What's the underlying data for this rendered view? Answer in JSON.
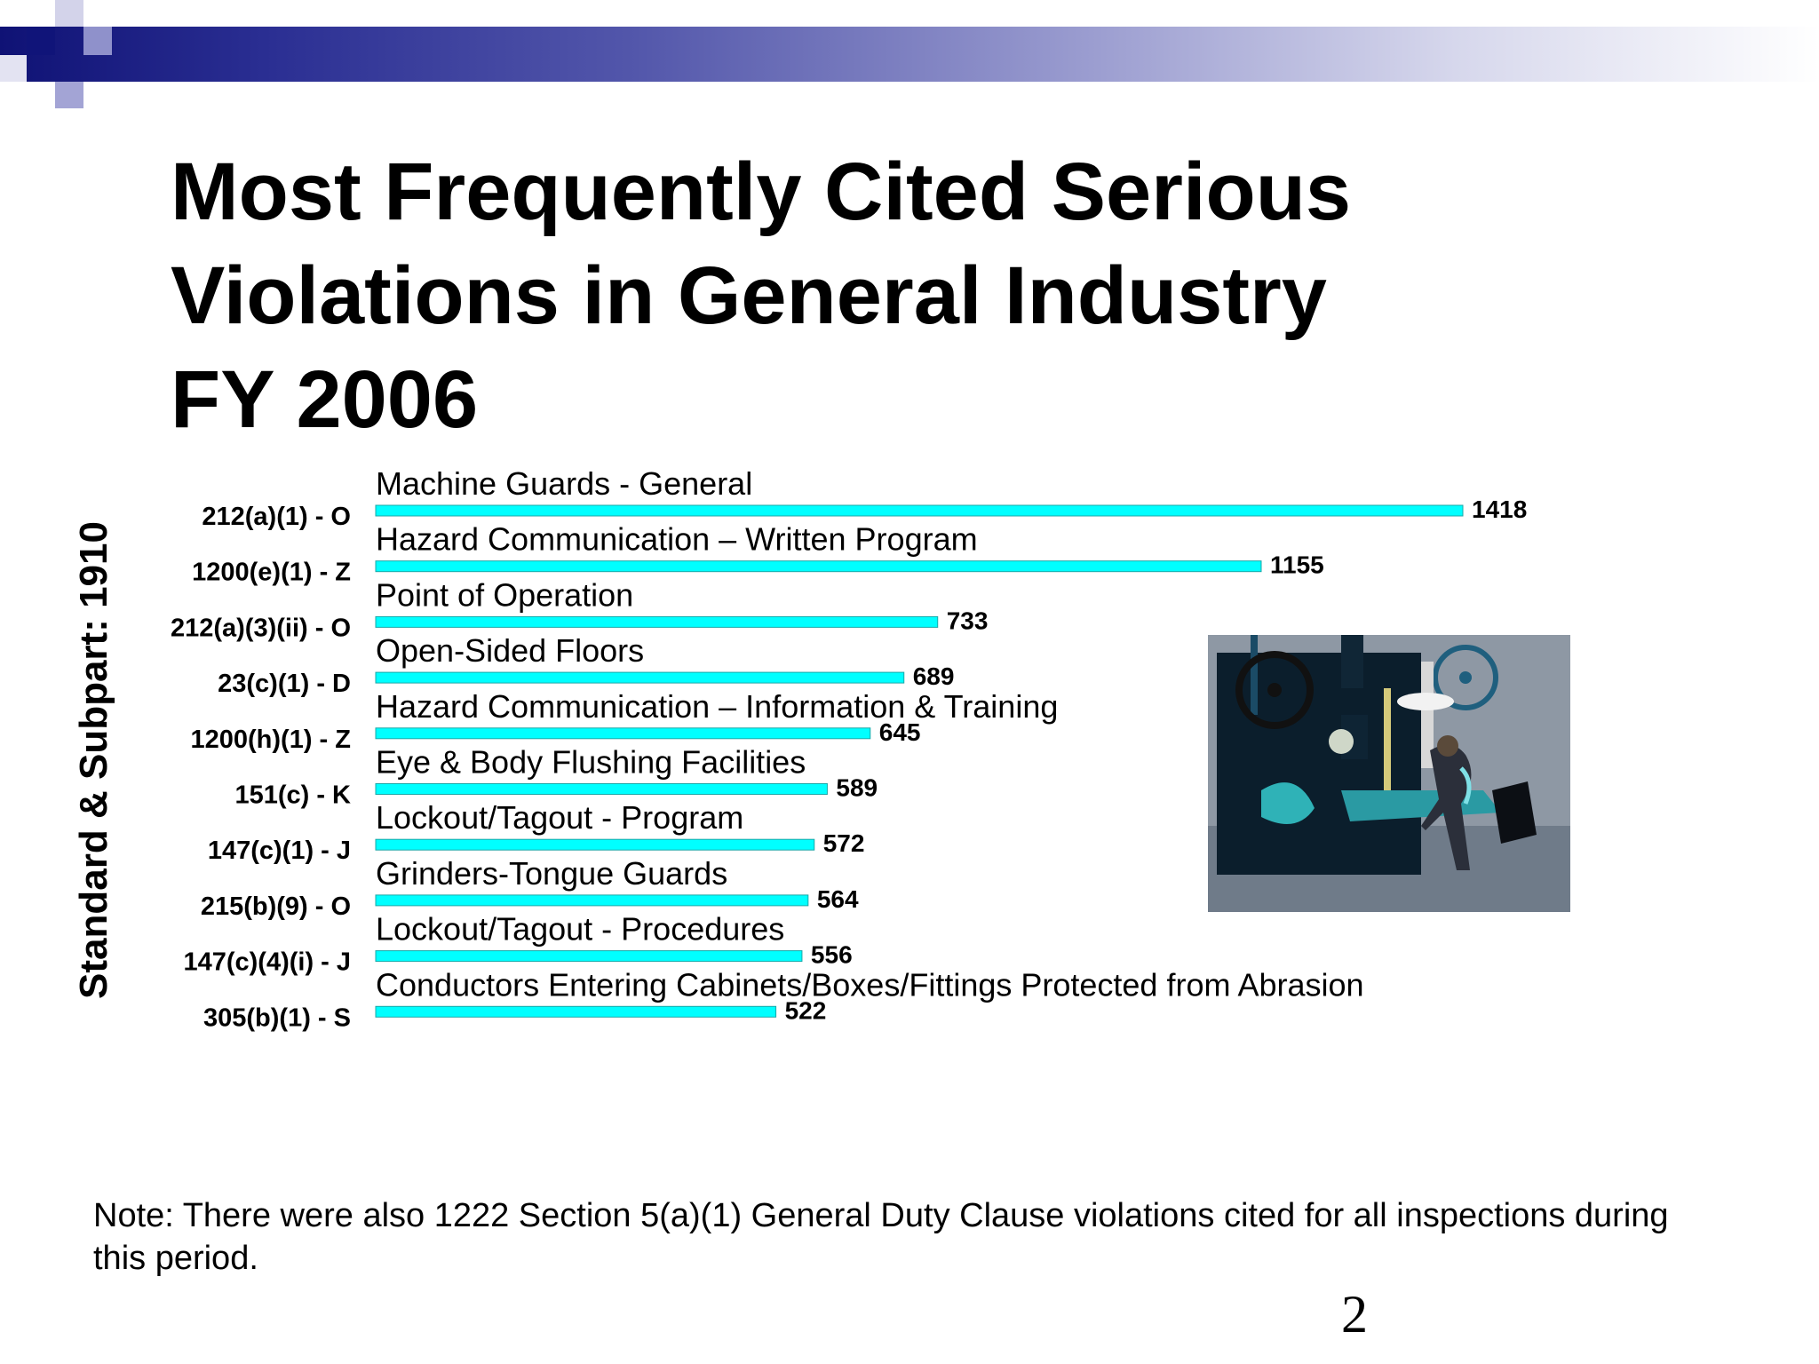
{
  "slide": {
    "title_lines": [
      "Most Frequently Cited Serious",
      "Violations in General Industry",
      "FY 2006"
    ],
    "note": "Note: There were also 1222 Section 5(a)(1) General Duty Clause violations cited for all inspections during this period.",
    "page_number": "2",
    "illustration": "machine-operator-illustration"
  },
  "chart_data": {
    "type": "bar",
    "orientation": "horizontal",
    "ylabel": "Standard & Subpart:  1910",
    "categories": [
      "212(a)(1) - O",
      "1200(e)(1) - Z",
      "212(a)(3)(ii) - O",
      "23(c)(1) - D",
      "1200(h)(1) - Z",
      "151(c) - K",
      "147(c)(1) - J",
      "215(b)(9) - O",
      "147(c)(4)(i) - J",
      "305(b)(1) - S"
    ],
    "descriptions": [
      "Machine Guards - General",
      "Hazard Communication – Written Program",
      "Point of Operation",
      "Open-Sided Floors",
      "Hazard Communication – Information & Training",
      "Eye & Body Flushing Facilities",
      "Lockout/Tagout - Program",
      "Grinders-Tongue Guards",
      "Lockout/Tagout - Procedures",
      "Conductors Entering Cabinets/Boxes/Fittings Protected from Abrasion"
    ],
    "values": [
      1418,
      1155,
      733,
      689,
      645,
      589,
      572,
      564,
      556,
      522
    ],
    "xlim": [
      0,
      1418
    ],
    "grid": false,
    "legend": "none",
    "bar_color": "#00ffff"
  }
}
